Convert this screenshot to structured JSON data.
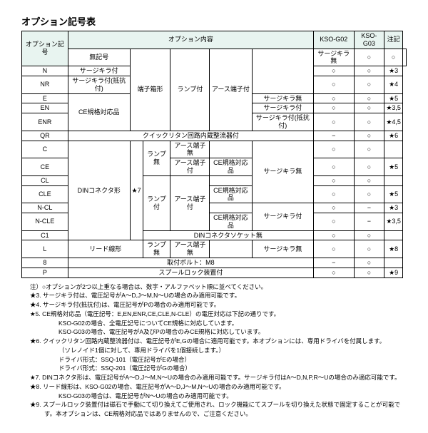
{
  "title": "オプション記号表",
  "headers": {
    "col1": "オプション記号",
    "col_content": "オプション内容",
    "col_g02": "KSO-G02",
    "col_g03": "KSO-G03",
    "col_note": "注記"
  },
  "cells": {
    "blank_code": "無記号",
    "n": "N",
    "nr": "NR",
    "e": "E",
    "en": "EN",
    "enr": "ENR",
    "qr": "QR",
    "c": "C",
    "ce": "CE",
    "cl": "CL",
    "cle": "CLE",
    "ncl": "N-CL",
    "ncle": "N-CLE",
    "c1": "C1",
    "l": "L",
    "eight": "8",
    "p": "P",
    "terminal_box": "端子箱形",
    "din_connector": "DINコネクタ形",
    "star7": "★7",
    "lead_wire": "リード線形",
    "lamp_on": "ランプ付",
    "lamp_off": "ランプ無",
    "earth_on": "アース端子付",
    "earth_off": "アース端子無",
    "ce_compliant": "CE規格対応品",
    "quick_return": "クイックリタン回路内蔵整流器付",
    "din_socket_none": "DINコネクタソケット無",
    "bolt_m8": "取付ボルト：M8",
    "spool_lock": "スプールロック装置付",
    "surge_none": "サージキラ無",
    "surge_on": "サージキラ付",
    "surge_res": "サージキラ付(抵抗付)",
    "circ": "○",
    "dash": "−",
    "s3": "★3",
    "s4": "★4",
    "s5": "★5",
    "s35": "★3,5",
    "s45": "★4,5",
    "s6": "★6",
    "s8": "★8",
    "s9": "★9",
    "blank": ""
  },
  "notes": {
    "intro": "注）○オプションが2つ以上重なる場合は、数字・アルファベット順に並べてください。",
    "n3": "★3. サージキラ付は、電圧記号がA〜D,J〜M,N〜Uの場合のみ適用可能です。",
    "n4": "★4. サージキラ付(抵抗付)は、電圧記号がPの場合のみ適用可能です。",
    "n5": "★5. CE規格対応品（電圧記号：E,EN,ENR,CE,CLE,N-CLE）の電圧対応は下記の通りです。",
    "n5a": "KSO-G02の場合、全電圧記号についてCE規格に対応しています。",
    "n5b": "KSO-G03の場合、電圧記号がA及びPの場合のみCE規格に対応しています。",
    "n6": "★6. クイックリタン回路内蔵整流器付は、電圧記号がE,Gの場合に適用可能です。本オプションには、専用ドライバを付属します。",
    "n6a": "（ソレノイド1個に対して、専用ドライバを1個接続します。）",
    "n6b": "ドライバ形式：SSQ-101（電圧記号がEの場合）",
    "n6c": "ドライバ形式：SSQ-201（電圧記号がGの場合）",
    "n7": "★7. DINコネクタ形は、電圧記号がA〜D,J〜M,N〜Uの場合のみ適用可能です。サージキラ付はA〜D,N,P,R〜Uの場合のみ適応可能です。",
    "n8": "★8. リード線形は、KSO-G02の場合、電圧記号がA〜D,J〜M,N〜Uの場合のみ適用可能です。",
    "n8a": "KSO-G03の場合は、電圧記号がN〜Uの場合のみ適用可能です。",
    "n9": "★9. スプールロック装置付は磁石で手動にて切り換えてご使用され、ロック機能にてスプールを切り換えた状態で固定することが可能です。本オプションは、CE規格対応品ではありませんので、ご注意ください。"
  }
}
